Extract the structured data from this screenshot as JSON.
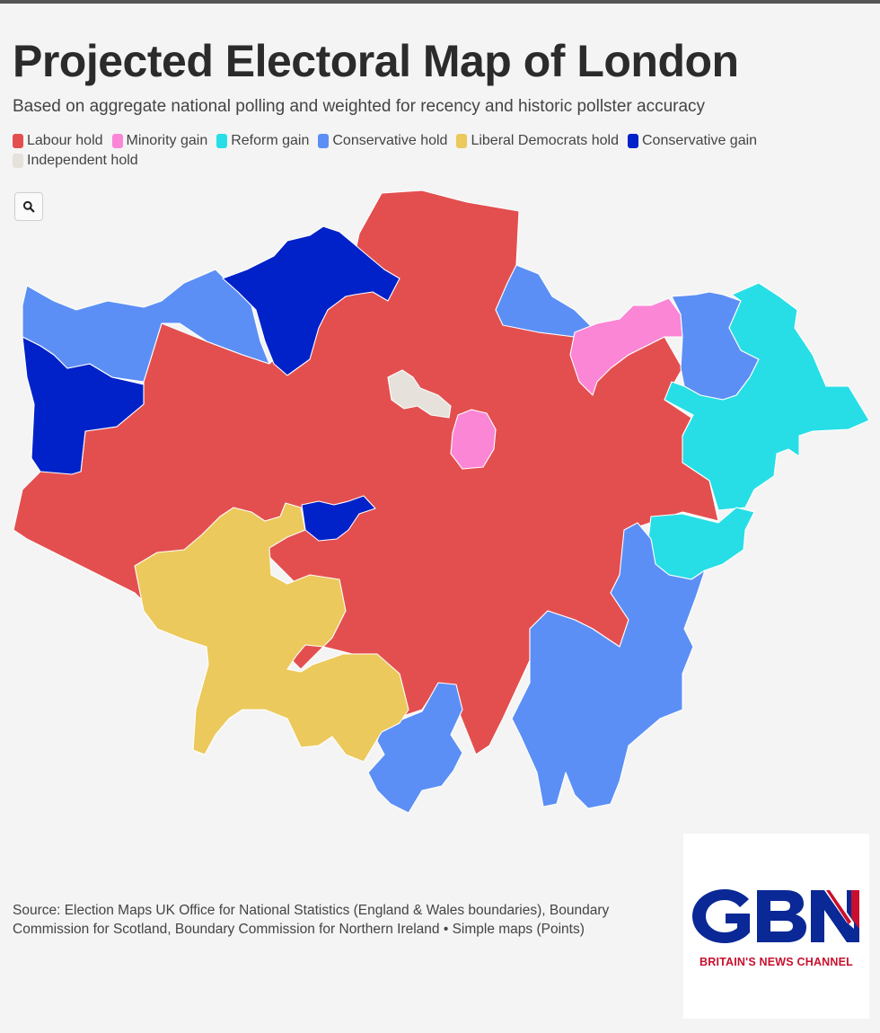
{
  "title": "Projected Electoral Map of London",
  "subtitle": "Based on aggregate national polling and weighted for recency and historic pollster accuracy",
  "legend": [
    {
      "label": "Labour hold",
      "color": "#e34f4f"
    },
    {
      "label": "Minority gain",
      "color": "#fb86d6"
    },
    {
      "label": "Reform gain",
      "color": "#27dee6"
    },
    {
      "label": "Conservative hold",
      "color": "#5c8ff5"
    },
    {
      "label": "Liberal Democrats hold",
      "color": "#ecc95c"
    },
    {
      "label": "Conservative gain",
      "color": "#0122c8"
    },
    {
      "label": "Independent hold",
      "color": "#e6e1db"
    }
  ],
  "zoom": {
    "icon": "search-icon"
  },
  "source": "Source: Election Maps UK Office for National Statistics (England & Wales boundaries), Boundary Commission for Scotland, Boundary Commission for Northern Ireland • Simple maps (Points)",
  "logo": {
    "letters": "GBN",
    "tagline": "BRITAIN'S NEWS CHANNEL",
    "colors": {
      "blue": "#0a2896",
      "red": "#c8102e"
    }
  }
}
